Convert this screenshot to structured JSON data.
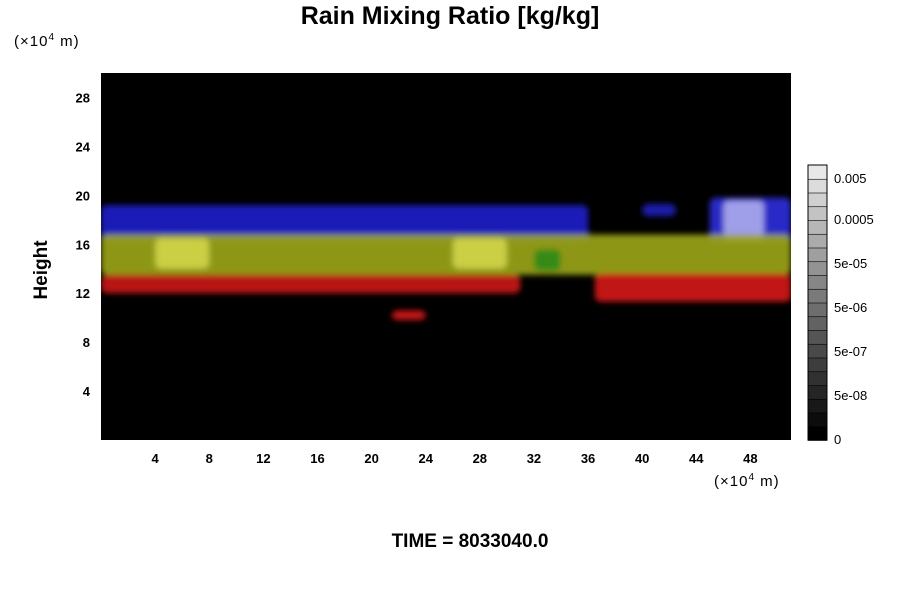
{
  "chart_data": {
    "type": "heatmap",
    "title": "Rain Mixing Ratio [kg/kg]",
    "ylabel": "Height",
    "xlabel": "",
    "y_unit": {
      "prefix": "(×10",
      "exp": "4",
      "suffix": " m)"
    },
    "x_unit": {
      "prefix": "(×10",
      "exp": "4",
      "suffix": " m)"
    },
    "xlim": [
      0,
      51
    ],
    "ylim": [
      0,
      30
    ],
    "xticks": [
      4,
      8,
      12,
      16,
      20,
      24,
      28,
      32,
      36,
      40,
      44,
      48
    ],
    "yticks": [
      4,
      8,
      12,
      16,
      20,
      24,
      28
    ],
    "background_color": "#000000",
    "bands": [
      {
        "name": "blue",
        "color": "#2a2ad8",
        "y_range": [
          16,
          19
        ]
      },
      {
        "name": "yellow-green",
        "color": "#9aa41a",
        "y_range": [
          13,
          16
        ]
      },
      {
        "name": "red",
        "color": "#d21a14",
        "y_range": [
          12,
          13.5
        ]
      }
    ],
    "features": [
      {
        "color": "#1c1cc8",
        "x": [
          0,
          36
        ],
        "y": [
          16.2,
          19.2
        ]
      },
      {
        "color": "#2020b8",
        "x": [
          40,
          42.5
        ],
        "y": [
          18.3,
          19.3
        ]
      },
      {
        "color": "#2a2ad8",
        "x": [
          45,
          51
        ],
        "y": [
          16.2,
          19.8
        ]
      },
      {
        "color": "#a8a8ec",
        "x": [
          46,
          49
        ],
        "y": [
          16.2,
          19.6
        ]
      },
      {
        "color": "#9aa41a",
        "x": [
          0,
          51
        ],
        "y": [
          13.5,
          16.8
        ]
      },
      {
        "color": "#cfd44a",
        "x": [
          4,
          8
        ],
        "y": [
          14,
          16.5
        ]
      },
      {
        "color": "#cfd44a",
        "x": [
          26,
          30
        ],
        "y": [
          14,
          16.5
        ]
      },
      {
        "color": "#2e8a18",
        "x": [
          32,
          34
        ],
        "y": [
          13.8,
          15.6
        ]
      },
      {
        "color": "#c81a14",
        "x": [
          0,
          31
        ],
        "y": [
          12,
          13.5
        ]
      },
      {
        "color": "#d21a14",
        "x": [
          36.5,
          51
        ],
        "y": [
          11.3,
          13.6
        ]
      },
      {
        "color": "#d01414",
        "x": [
          21.5,
          24
        ],
        "y": [
          9.8,
          10.6
        ]
      }
    ],
    "colorbar": {
      "labels": [
        "0.005",
        "0.0005",
        "5e-05",
        "5e-06",
        "5e-07",
        "5e-08",
        "0"
      ],
      "label_positions": [
        0.95,
        0.8,
        0.64,
        0.48,
        0.32,
        0.16,
        0.0
      ],
      "levels": 20
    }
  },
  "time_label": "TIME = 8033040.0"
}
